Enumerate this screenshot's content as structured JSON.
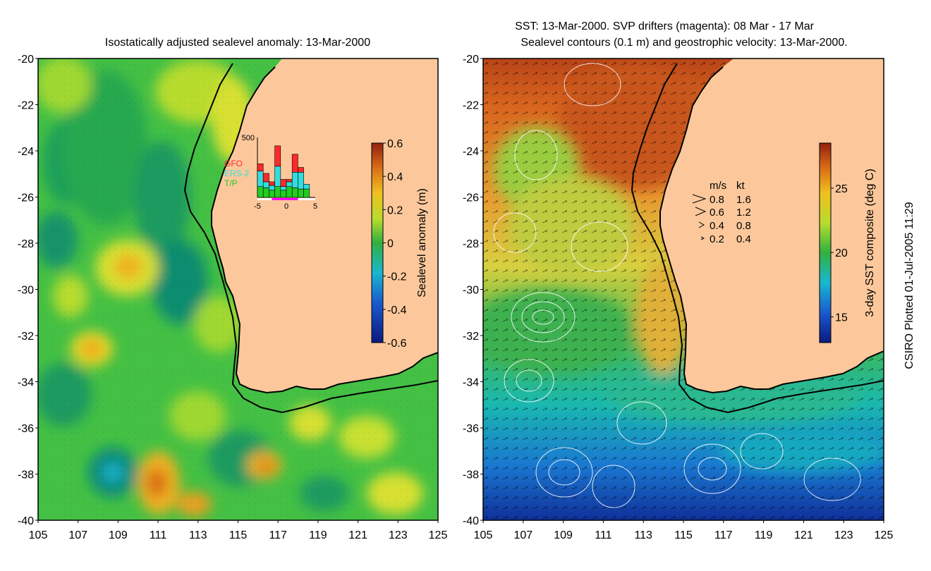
{
  "left_panel": {
    "title": "Isostatically adjusted sealevel anomaly: 13-Mar-2000",
    "colorbar": {
      "label": "Sealevel anomaly (m)",
      "ticks": [
        "0.6",
        "0.4",
        "0.2",
        "0",
        "-0.2",
        "-0.4",
        "-0.6"
      ],
      "tick_values": [
        0.6,
        0.4,
        0.2,
        0,
        -0.2,
        -0.4,
        -0.6
      ],
      "range": [
        -0.6,
        0.6
      ]
    },
    "histogram": {
      "ymax_label": "500",
      "ymax": 500,
      "x_ticks": [
        "-5",
        "0",
        "5"
      ],
      "x_values": [
        -5,
        0,
        5
      ],
      "legend": [
        {
          "name": "GFO",
          "color": "#ff2a2a"
        },
        {
          "name": "ERS-2",
          "color": "#33dddd"
        },
        {
          "name": "T/P",
          "color": "#22cc22"
        }
      ],
      "bars": [
        {
          "day": -4.5,
          "tp": 90,
          "ers": 130,
          "gfo": 60
        },
        {
          "day": -3.5,
          "tp": 80,
          "ers": 50,
          "gfo": 70
        },
        {
          "day": -2.5,
          "tp": 60,
          "ers": 40,
          "gfo": 30
        },
        {
          "day": -1.5,
          "tp": 90,
          "ers": 170,
          "gfo": 170
        },
        {
          "day": -0.5,
          "tp": 60,
          "ers": 30,
          "gfo": 60
        },
        {
          "day": 0.5,
          "tp": 90,
          "ers": 40,
          "gfo": 20
        },
        {
          "day": 1.5,
          "tp": 80,
          "ers": 130,
          "gfo": 150
        },
        {
          "day": 2.5,
          "tp": 70,
          "ers": 140,
          "gfo": 40
        },
        {
          "day": 3.5,
          "tp": 70,
          "ers": 40,
          "gfo": 0
        }
      ]
    }
  },
  "right_panel": {
    "title_line1": "SST: 13-Mar-2000. SVP drifters (magenta): 08 Mar - 17 Mar",
    "title_line2": "Sealevel contours (0.1 m) and geostrophic velocity: 13-Mar-2000.",
    "colorbar": {
      "label": "3-day SST composite (deg C)",
      "ticks": [
        "25",
        "20",
        "15"
      ],
      "tick_values": [
        25,
        20,
        15
      ],
      "range": [
        13,
        28.5
      ]
    },
    "velocity_legend": {
      "header_ms": "m/s",
      "header_kt": "kt",
      "rows": [
        {
          "ms": "0.8",
          "kt": "1.6"
        },
        {
          "ms": "0.6",
          "kt": "1.2"
        },
        {
          "ms": "0.4",
          "kt": "0.8"
        },
        {
          "ms": "0.2",
          "kt": "0.4"
        }
      ]
    }
  },
  "axes": {
    "lat_labels": [
      "-20",
      "-22",
      "-24",
      "-26",
      "-28",
      "-30",
      "-32",
      "-34",
      "-36",
      "-38",
      "-40"
    ],
    "lon_labels": [
      "105",
      "107",
      "109",
      "111",
      "113",
      "115",
      "117",
      "119",
      "121",
      "123",
      "125"
    ]
  },
  "credit": "CSIRO Plotted 01-Jul-2005 11:29",
  "colors": {
    "land": "#fcc89b",
    "sla_background": "#44c044",
    "coast": "#000000"
  }
}
